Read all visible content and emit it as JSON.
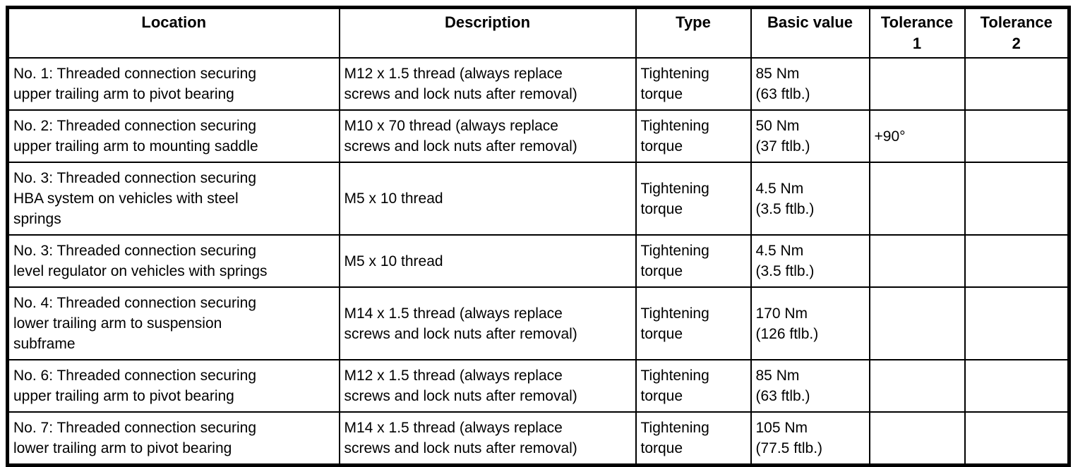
{
  "page": {
    "background_color": "#ffffff",
    "border_color": "#000000",
    "text_color": "#000000"
  },
  "table": {
    "columns": [
      {
        "id": "location",
        "label": "Location"
      },
      {
        "id": "description",
        "label": "Description"
      },
      {
        "id": "type",
        "label": "Type"
      },
      {
        "id": "basic_value",
        "label": "Basic value"
      },
      {
        "id": "tolerance_1",
        "label": "Tolerance\n1"
      },
      {
        "id": "tolerance_2",
        "label": "Tolerance\n2"
      }
    ],
    "rows": [
      {
        "location": "No. 1: Threaded connection securing\nupper trailing arm to pivot bearing",
        "description": "M12 x 1.5 thread (always replace\nscrews and lock nuts after removal)",
        "type": "Tightening\ntorque",
        "basic_value": "85 Nm\n(63 ftlb.)",
        "tolerance_1": "",
        "tolerance_2": ""
      },
      {
        "location": "No. 2: Threaded connection securing\nupper trailing arm to mounting saddle",
        "description": "M10 x 70 thread (always replace\nscrews and lock nuts after removal)",
        "type": "Tightening\ntorque",
        "basic_value": "50 Nm\n(37 ftlb.)",
        "tolerance_1": "+90°",
        "tolerance_2": ""
      },
      {
        "location": "No. 3: Threaded connection securing\nHBA system on vehicles with steel\nsprings",
        "description": "M5 x 10 thread",
        "type": "Tightening\ntorque",
        "basic_value": "4.5 Nm\n(3.5 ftlb.)",
        "tolerance_1": "",
        "tolerance_2": ""
      },
      {
        "location": "No. 3: Threaded connection securing\nlevel regulator on vehicles with springs",
        "description": "M5 x 10 thread",
        "type": "Tightening\ntorque",
        "basic_value": "4.5 Nm\n(3.5 ftlb.)",
        "tolerance_1": "",
        "tolerance_2": ""
      },
      {
        "location": "No. 4: Threaded connection securing\nlower trailing arm to suspension\nsubframe",
        "description": "M14 x 1.5 thread (always replace\nscrews and lock nuts after removal)",
        "type": "Tightening\ntorque",
        "basic_value": "170 Nm\n(126 ftlb.)",
        "tolerance_1": "",
        "tolerance_2": ""
      },
      {
        "location": "No. 6: Threaded connection securing\nupper trailing arm to pivot bearing",
        "description": "M12 x 1.5 thread (always replace\nscrews and lock nuts after removal)",
        "type": "Tightening\ntorque",
        "basic_value": "85 Nm\n(63 ftlb.)",
        "tolerance_1": "",
        "tolerance_2": ""
      },
      {
        "location": "No. 7: Threaded connection securing\nlower trailing arm to pivot bearing",
        "description": "M14 x 1.5 thread (always replace\nscrews and lock nuts after removal)",
        "type": "Tightening\ntorque",
        "basic_value": "105 Nm\n(77.5 ftlb.)",
        "tolerance_1": "",
        "tolerance_2": ""
      }
    ]
  }
}
